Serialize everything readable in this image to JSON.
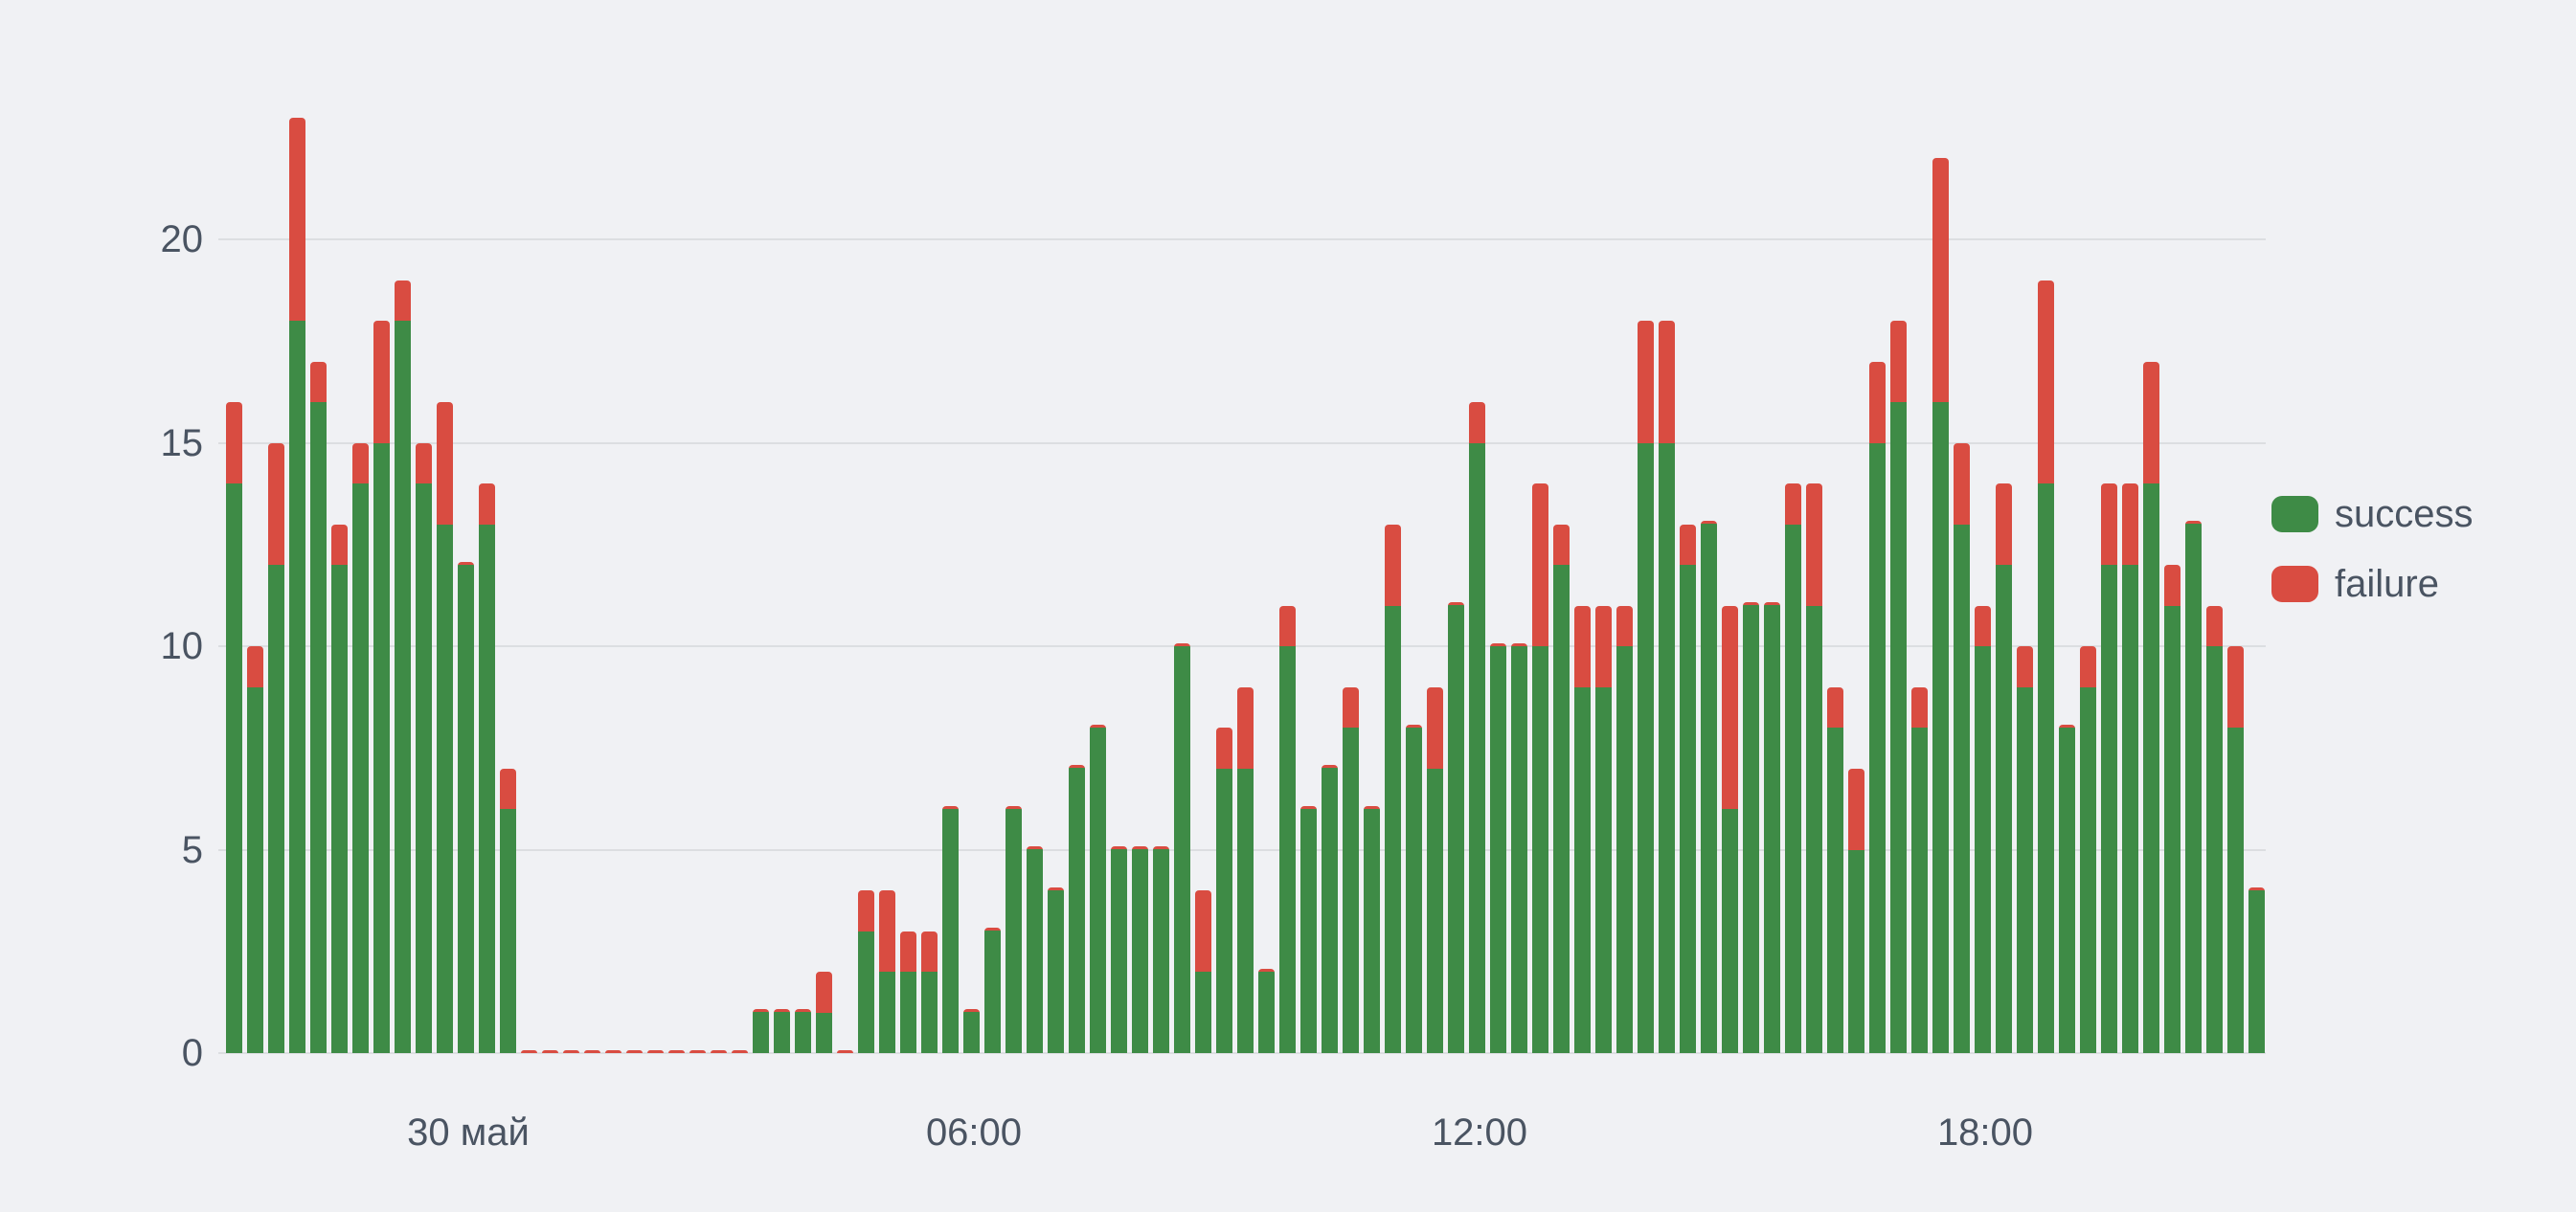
{
  "chart_data": {
    "type": "bar",
    "stacked": true,
    "title": "",
    "xlabel": "",
    "ylabel": "",
    "grid": "horizontal",
    "legend_position": "right",
    "n_bars": 97,
    "bar_interval": "15min",
    "ylim": [
      0,
      23.5
    ],
    "y_ticks": [
      0,
      5,
      10,
      15,
      20
    ],
    "x_ticks": [
      {
        "index": 11,
        "label": "30 май"
      },
      {
        "index": 35,
        "label": "06:00"
      },
      {
        "index": 59,
        "label": "12:00"
      },
      {
        "index": 83,
        "label": "18:00"
      }
    ],
    "series": [
      {
        "name": "success",
        "color": "#3e8b46",
        "values": [
          14,
          9,
          12,
          18,
          16,
          12,
          14,
          15,
          18,
          14,
          13,
          12,
          13,
          6,
          0,
          0,
          0,
          0,
          0,
          0,
          0,
          0,
          0,
          0,
          0,
          1,
          1,
          1,
          1,
          0,
          3,
          2,
          2,
          2,
          6,
          1,
          3,
          6,
          5,
          4,
          7,
          8,
          5,
          5,
          5,
          10,
          2,
          7,
          7,
          2,
          10,
          6,
          7,
          8,
          6,
          11,
          8,
          7,
          11,
          15,
          10,
          10,
          10,
          12,
          9,
          9,
          10,
          15,
          15,
          12,
          13,
          6,
          11,
          11,
          13,
          11,
          8,
          5,
          15,
          16,
          8,
          16,
          13,
          10,
          12,
          9,
          14,
          8,
          9,
          12,
          12,
          14,
          11,
          13,
          10,
          8,
          4
        ]
      },
      {
        "name": "failure",
        "color": "#d94c41",
        "values": [
          2,
          1,
          3,
          5,
          1,
          1,
          1,
          3,
          1,
          1,
          3,
          0,
          1,
          1,
          0,
          0,
          0,
          0,
          0,
          0,
          0,
          0,
          0,
          0,
          0,
          0,
          0,
          0,
          1,
          0,
          1,
          2,
          1,
          1,
          0,
          0,
          0,
          0,
          0,
          0,
          0,
          0,
          0,
          0,
          0,
          0,
          2,
          1,
          2,
          0,
          1,
          0,
          0,
          1,
          0,
          2,
          0,
          2,
          0,
          1,
          0,
          0,
          4,
          1,
          2,
          2,
          1,
          3,
          3,
          1,
          0,
          5,
          0,
          0,
          1,
          3,
          1,
          2,
          2,
          2,
          1,
          6,
          2,
          1,
          2,
          1,
          5,
          0,
          1,
          2,
          2,
          3,
          1,
          0,
          1,
          2,
          0
        ]
      }
    ]
  },
  "legend": {
    "items": [
      {
        "label": "success",
        "color": "#3e8b46"
      },
      {
        "label": "failure",
        "color": "#d94c41"
      }
    ]
  },
  "colors": {
    "background": "#f0f1f4",
    "gridline": "#dcdee1",
    "axis_text": "#4a5462",
    "success": "#3e8b46",
    "failure": "#d94c41"
  }
}
